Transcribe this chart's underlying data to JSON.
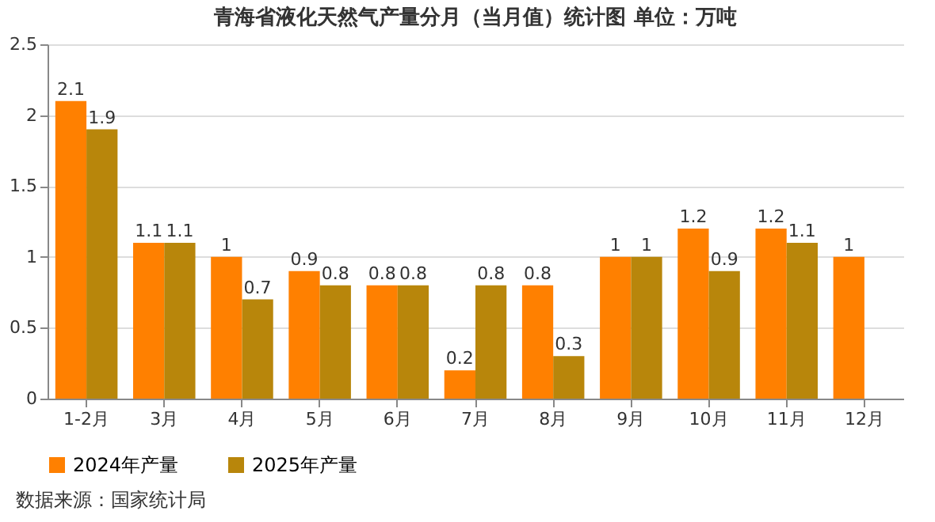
{
  "chart_data": {
    "type": "bar",
    "title": "青海省液化天然气产量分月（当月值）统计图 单位：万吨",
    "categories": [
      "1-2月",
      "3月",
      "4月",
      "5月",
      "6月",
      "7月",
      "8月",
      "9月",
      "10月",
      "11月",
      "12月"
    ],
    "series": [
      {
        "name": "2024年产量",
        "color": "#ff8000",
        "values": [
          2.1,
          1.1,
          1,
          0.9,
          0.8,
          0.2,
          0.8,
          1,
          1.2,
          1.2,
          1
        ]
      },
      {
        "name": "2025年产量",
        "color": "#b8860b",
        "values": [
          1.9,
          1.1,
          0.7,
          0.8,
          0.8,
          0.8,
          0.3,
          1,
          0.9,
          1.1,
          null
        ]
      }
    ],
    "ylim": [
      0,
      2.5
    ],
    "yticks": [
      0,
      0.5,
      1,
      1.5,
      2,
      2.5
    ],
    "grid": "y",
    "legend": "bottom",
    "data_labels": true,
    "annotations": [
      "数据来源：国家统计局"
    ]
  }
}
